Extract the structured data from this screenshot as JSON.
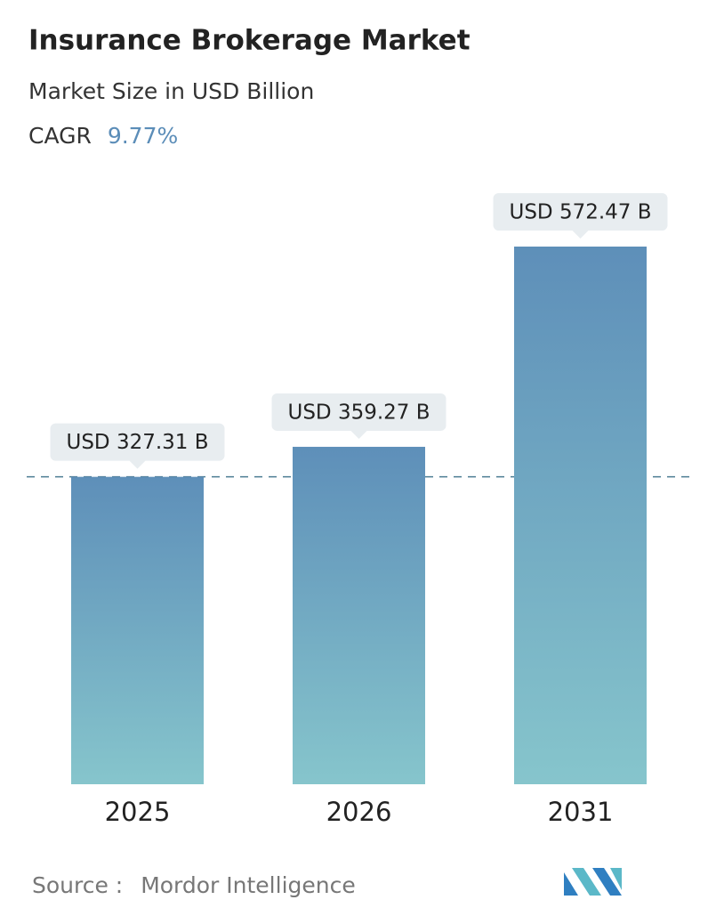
{
  "chart_data": {
    "type": "bar",
    "title": "Insurance Brokerage Market",
    "subtitle": "Market Size in USD Billion",
    "cagr_label": "CAGR",
    "cagr_value": "9.77%",
    "categories": [
      "2025",
      "2026",
      "2031"
    ],
    "values": [
      327.31,
      359.27,
      572.47
    ],
    "value_labels": [
      "USD 327.31 B",
      "USD 359.27 B",
      "USD 572.47 B"
    ],
    "color_top": "#5e8fb9",
    "color_bottom": "#86c5cc",
    "source_label": "Source :",
    "source": "Mordor Intelligence"
  }
}
